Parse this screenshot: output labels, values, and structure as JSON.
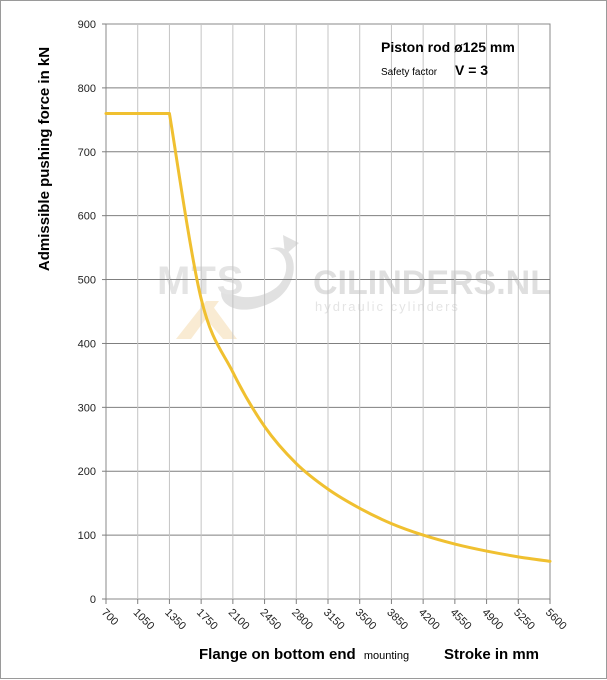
{
  "chart_data": {
    "type": "line",
    "annotation": {
      "line1": "Piston rod ø125 mm",
      "line2_small": "Safety factor",
      "line2_big": "V = 3"
    },
    "ylabel": "Admissible pushing  force in kN",
    "xlabel_main": "Flange on bottom end",
    "xlabel_small": "mounting",
    "xlabel_right": "Stroke in mm",
    "watermark": {
      "left": "MTS",
      "right": "CILINDERS.NL",
      "sub": "hydraulic cylinders"
    },
    "y_ticks": [
      0,
      100,
      200,
      300,
      400,
      500,
      600,
      700,
      800,
      900
    ],
    "ylim": [
      0,
      900
    ],
    "x_ticks": [
      "700",
      "1050",
      "1350",
      "1750",
      "2100",
      "2450",
      "2800",
      "3150",
      "3500",
      "3850",
      "4200",
      "4550",
      "4900",
      "5250",
      "5600"
    ],
    "grid": true,
    "series": [
      {
        "color": "#f0c030",
        "x": [
          "700",
          "1050",
          "1350",
          "1750",
          "2100",
          "2450",
          "2800",
          "3150",
          "3500",
          "3850",
          "4200",
          "4550",
          "4900",
          "5250",
          "5600"
        ],
        "values": [
          760,
          760,
          760,
          470,
          355,
          270,
          212,
          172,
          142,
          118,
          100,
          86,
          75,
          66,
          59
        ]
      }
    ]
  }
}
